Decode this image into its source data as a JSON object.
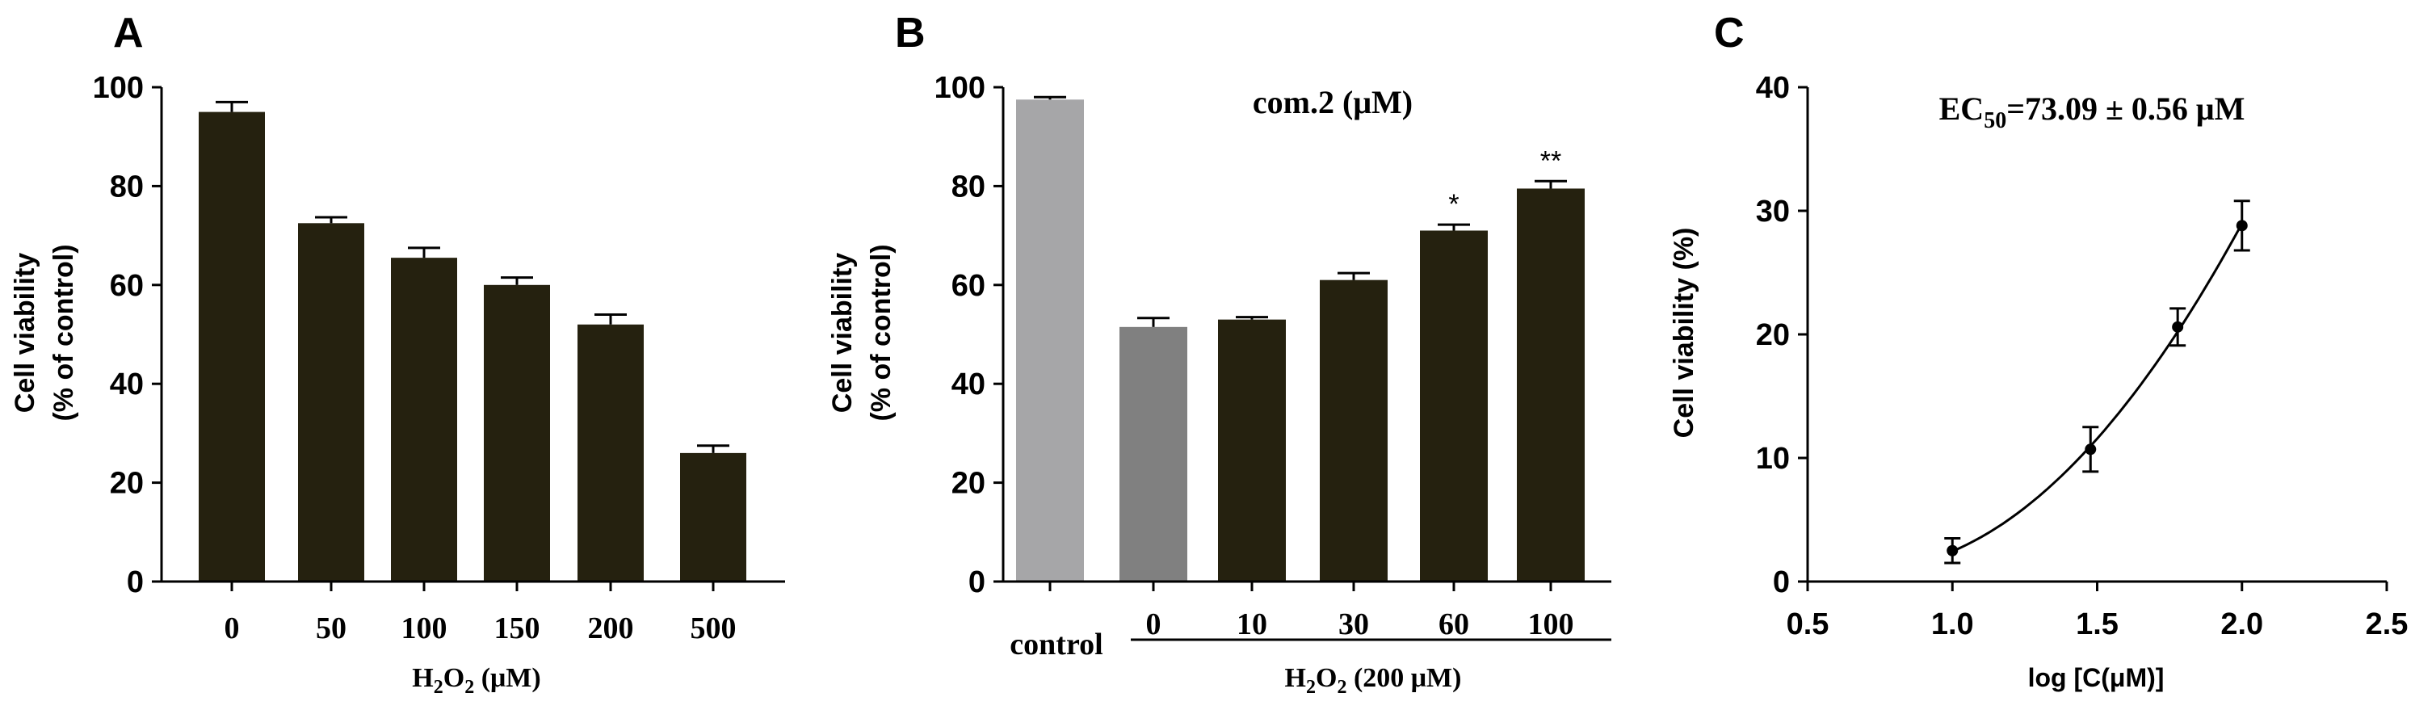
{
  "chart_data": [
    {
      "panel": "A",
      "type": "bar",
      "categories": [
        "0",
        "50",
        "100",
        "150",
        "200",
        "500"
      ],
      "values": [
        95,
        72.5,
        65.5,
        60,
        52,
        26
      ],
      "errors": [
        2,
        1.2,
        2,
        1.5,
        2,
        1.5
      ],
      "ylabel_line1": "Cell viability",
      "ylabel_line2": "(% of control)",
      "xlabel_main": "H",
      "xlabel_sub": "2",
      "xlabel_main2": "O",
      "xlabel_sub2": "2",
      "xlabel_rest": " (μM)",
      "ylim": [
        0,
        100
      ],
      "yticks": [
        "0",
        "20",
        "40",
        "60",
        "80",
        "100"
      ],
      "color": "#25210f"
    },
    {
      "panel": "B",
      "type": "bar",
      "categories": [
        "control",
        "0",
        "10",
        "30",
        "60",
        "100"
      ],
      "values": [
        97.5,
        51.5,
        53,
        61,
        71,
        79.5
      ],
      "errors": [
        0.5,
        1.8,
        0.5,
        1.4,
        1.2,
        1.5
      ],
      "colors": [
        "#a6a6a8",
        "#808080",
        "#25210f",
        "#25210f",
        "#25210f",
        "#25210f"
      ],
      "significance": [
        "",
        "",
        "",
        "",
        "*",
        "**"
      ],
      "annotation": "com.2  (μM)",
      "ylabel_line1": "Cell viability",
      "ylabel_line2": "(% of control)",
      "group_label": "H2O2 (200 μM)",
      "ylim": [
        0,
        100
      ],
      "yticks": [
        "0",
        "20",
        "40",
        "60",
        "80",
        "100"
      ]
    },
    {
      "panel": "C",
      "type": "line",
      "x": [
        1.0,
        1.477,
        1.778,
        2.0
      ],
      "y": [
        2.5,
        10.7,
        20.6,
        28.8
      ],
      "errors": [
        1.0,
        1.8,
        1.5,
        2.0
      ],
      "fit_curve": "sigmoidal dose-response",
      "ylabel": "Cell viability (%)",
      "xlabel": "log [C(μM)]",
      "xlim": [
        0.5,
        2.5
      ],
      "ylim": [
        0,
        40
      ],
      "xticks": [
        "0.5",
        "1.0",
        "1.5",
        "2.0",
        "2.5"
      ],
      "yticks": [
        "0",
        "10",
        "20",
        "30",
        "40"
      ],
      "annotation_prefix": "EC",
      "annotation_sub": "50",
      "annotation_rest": "=73.09 ±  0.56 μM"
    }
  ]
}
